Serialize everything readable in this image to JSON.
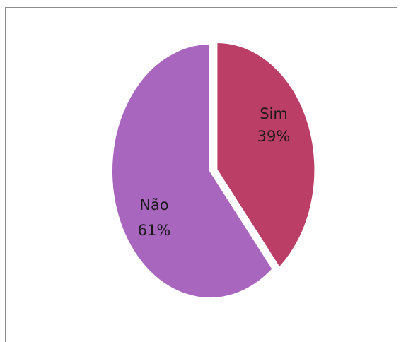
{
  "chart_data": {
    "type": "pie",
    "categories": [
      "Sim",
      "Não"
    ],
    "values": [
      39,
      61
    ],
    "value_labels": [
      "39%",
      "61%"
    ],
    "colors": [
      "#bb3e66",
      "#a966be"
    ],
    "exploded": "Sim",
    "legend": "none",
    "title": ""
  }
}
